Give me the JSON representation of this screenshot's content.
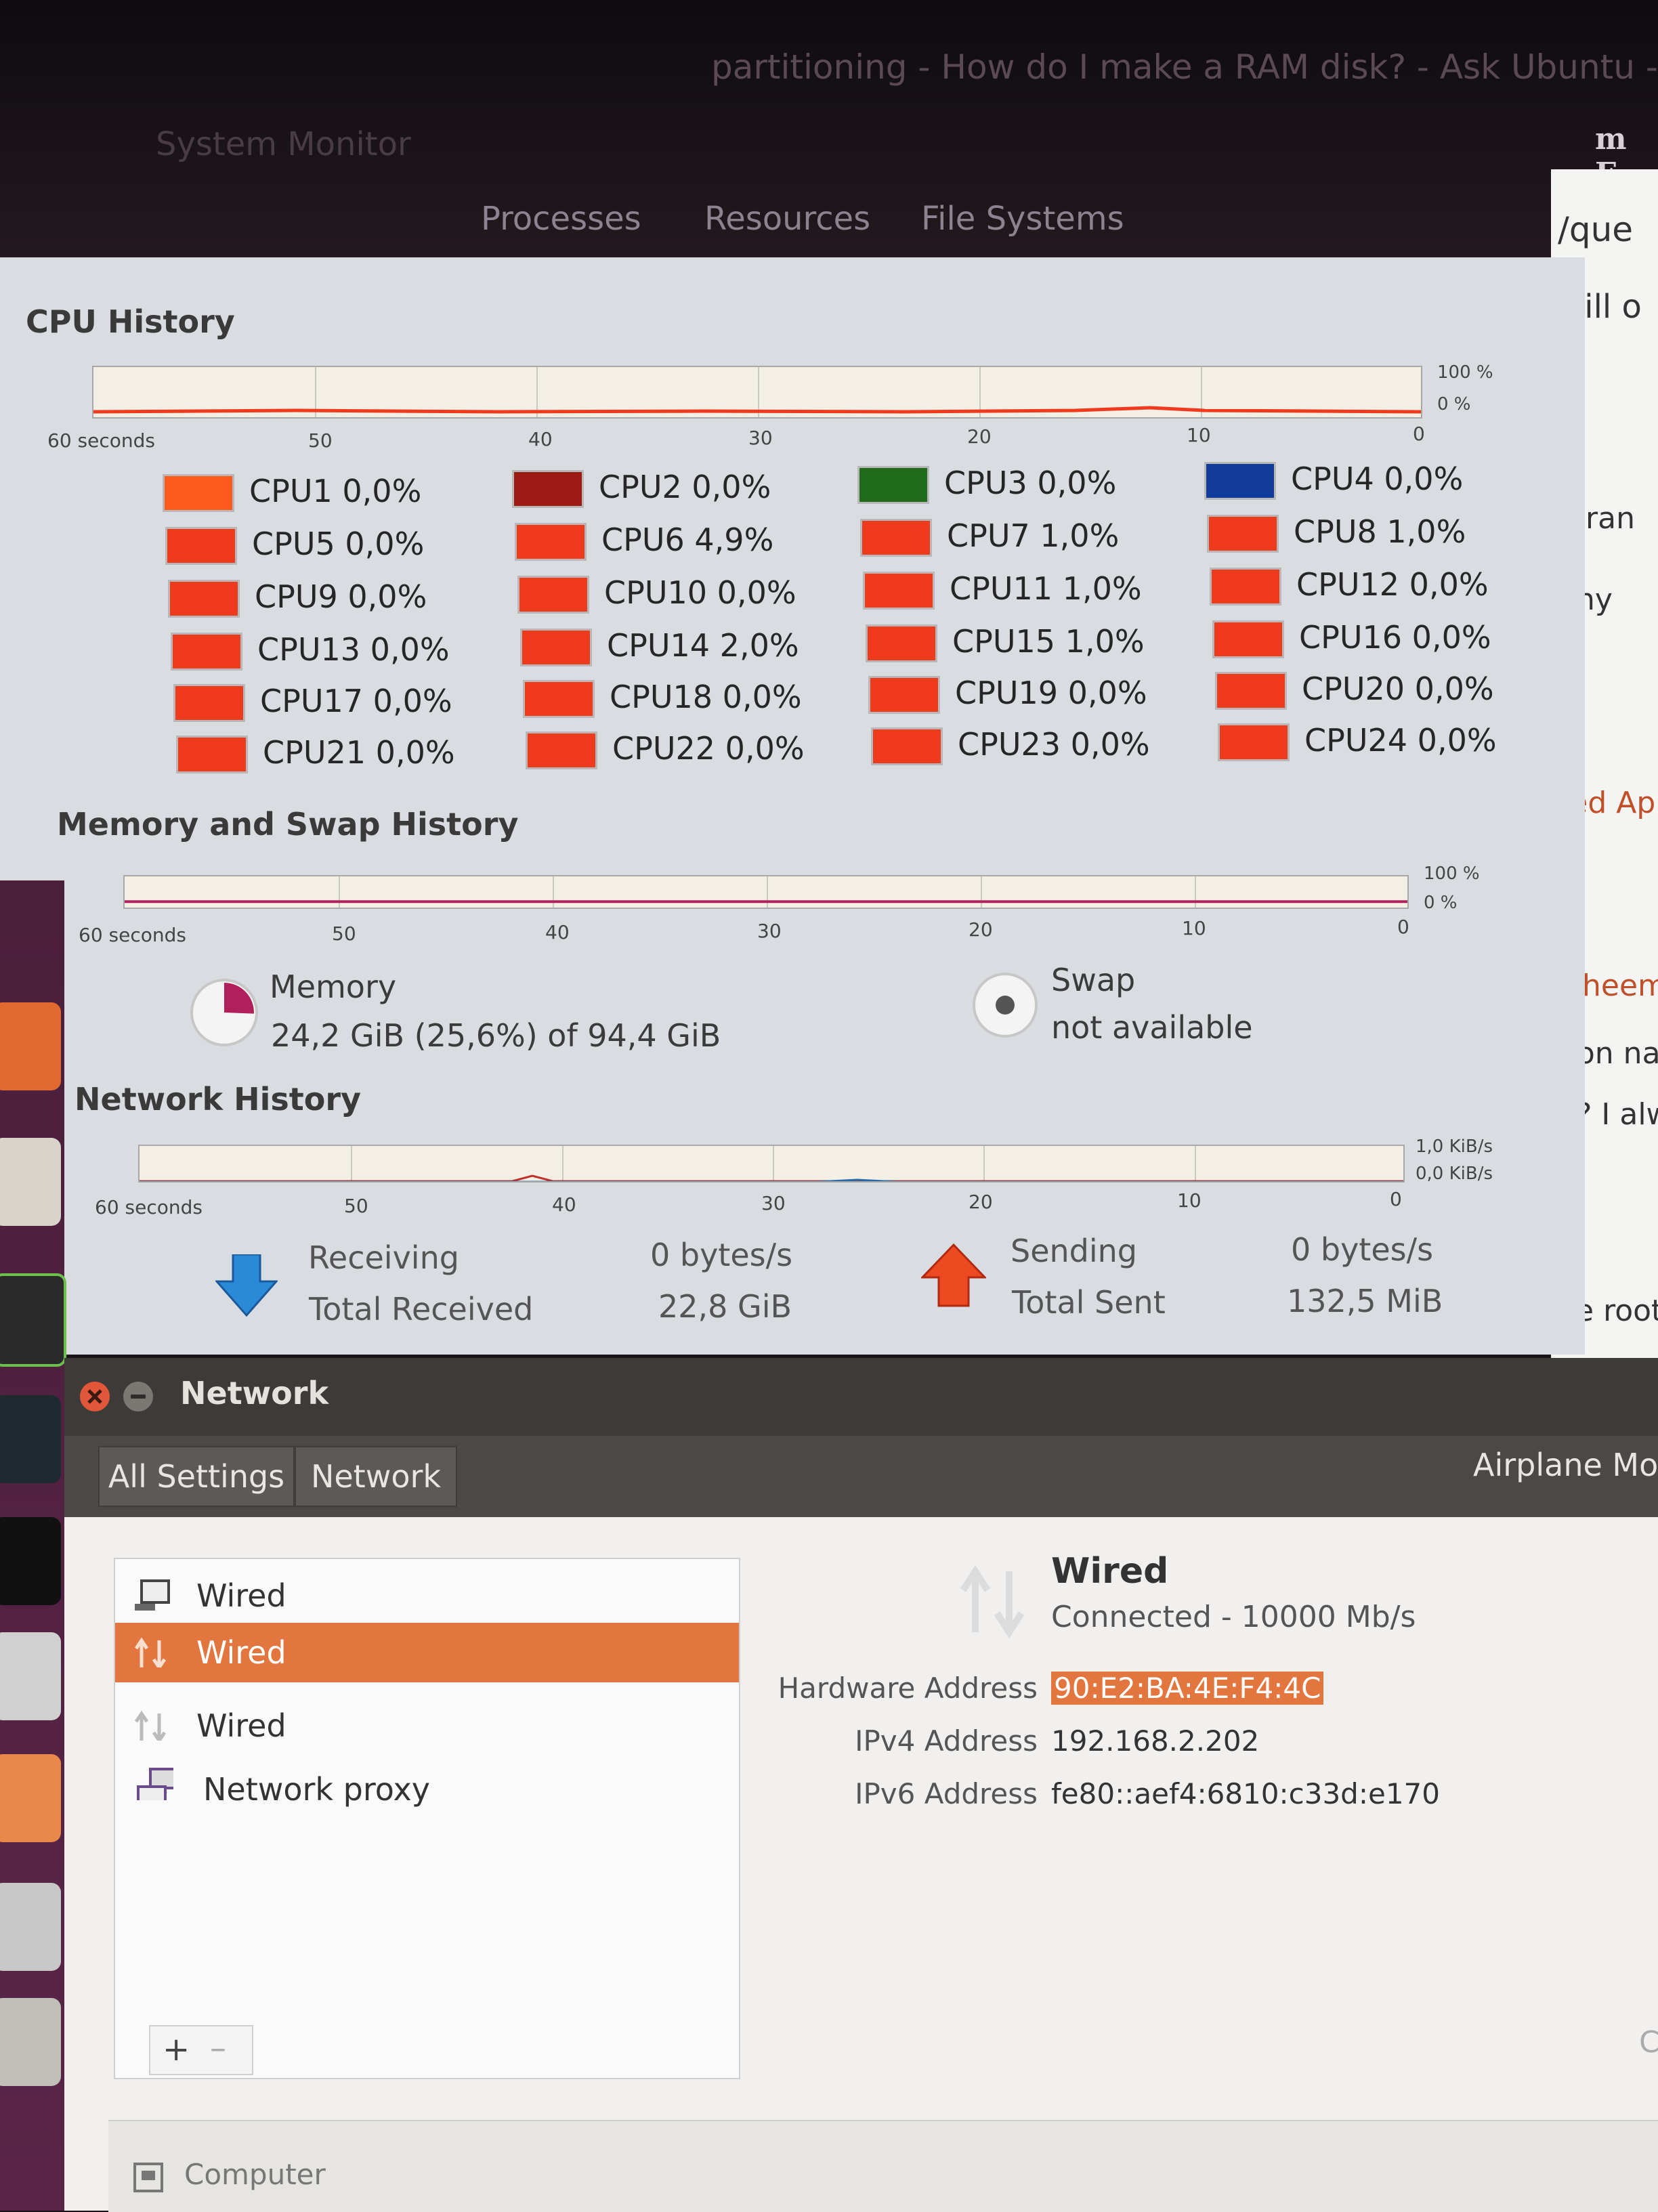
{
  "background": {
    "browser_tab_title": "partitioning - How do I make a RAM disk? - Ask Ubuntu - M",
    "window_title": "System Monitor",
    "browser_snippets": [
      "/que",
      "will o",
      "e ran",
      "any",
      "ted Apr",
      "– heema",
      "non nam",
      "e? I alwa",
      "ve root-"
    ]
  },
  "monitor": {
    "tabs": [
      "Processes",
      "Resources",
      "File Systems"
    ],
    "cpu": {
      "title": "CPU History",
      "axis": [
        "60 seconds",
        "50",
        "40",
        "30",
        "20",
        "10",
        "0"
      ],
      "scale": [
        "100 %",
        "0 %"
      ],
      "cores": [
        {
          "label": "CPU1 0,0%",
          "color": "#ff5a1e"
        },
        {
          "label": "CPU2 0,0%",
          "color": "#9c1b14"
        },
        {
          "label": "CPU3 0,0%",
          "color": "#1f6b1a"
        },
        {
          "label": "CPU4 0,0%",
          "color": "#123c9c"
        },
        {
          "label": "CPU5 0,0%",
          "color": "#ef3a1e"
        },
        {
          "label": "CPU6 4,9%",
          "color": "#ef3a1e"
        },
        {
          "label": "CPU7 1,0%",
          "color": "#ef3a1e"
        },
        {
          "label": "CPU8 1,0%",
          "color": "#ef3a1e"
        },
        {
          "label": "CPU9 0,0%",
          "color": "#ef3a1e"
        },
        {
          "label": "CPU10 0,0%",
          "color": "#ef3a1e"
        },
        {
          "label": "CPU11 1,0%",
          "color": "#ef3a1e"
        },
        {
          "label": "CPU12 0,0%",
          "color": "#ef3a1e"
        },
        {
          "label": "CPU13 0,0%",
          "color": "#ef3a1e"
        },
        {
          "label": "CPU14 2,0%",
          "color": "#ef3a1e"
        },
        {
          "label": "CPU15 1,0%",
          "color": "#ef3a1e"
        },
        {
          "label": "CPU16 0,0%",
          "color": "#ef3a1e"
        },
        {
          "label": "CPU17 0,0%",
          "color": "#ef3a1e"
        },
        {
          "label": "CPU18 0,0%",
          "color": "#ef3a1e"
        },
        {
          "label": "CPU19 0,0%",
          "color": "#ef3a1e"
        },
        {
          "label": "CPU20 0,0%",
          "color": "#ef3a1e"
        },
        {
          "label": "CPU21 0,0%",
          "color": "#ef3a1e"
        },
        {
          "label": "CPU22 0,0%",
          "color": "#ef3a1e"
        },
        {
          "label": "CPU23 0,0%",
          "color": "#ef3a1e"
        },
        {
          "label": "CPU24 0,0%",
          "color": "#ef3a1e"
        }
      ]
    },
    "memory": {
      "title": "Memory and Swap History",
      "axis": [
        "60 seconds",
        "50",
        "40",
        "30",
        "20",
        "10",
        "0"
      ],
      "scale": [
        "100 %",
        "0 %"
      ],
      "memory_label": "Memory",
      "memory_value": "24,2 GiB (25,6%) of 94,4 GiB",
      "memory_fraction": 0.256,
      "swap_label": "Swap",
      "swap_value": "not available"
    },
    "network": {
      "title": "Network History",
      "axis": [
        "60 seconds",
        "50",
        "40",
        "30",
        "20",
        "10",
        "0"
      ],
      "scale": [
        "1,0 KiB/s",
        "0,0 KiB/s"
      ],
      "receiving_label": "Receiving",
      "receiving_value": "0 bytes/s",
      "total_received_label": "Total Received",
      "total_received_value": "22,8 GiB",
      "sending_label": "Sending",
      "sending_value": "0 bytes/s",
      "total_sent_label": "Total Sent",
      "total_sent_value": "132,5 MiB"
    }
  },
  "network_window": {
    "title": "Network",
    "nav": [
      "All Settings",
      "Network"
    ],
    "airplane_mode": "Airplane Mod",
    "connections": [
      {
        "label": "Wired",
        "icon": "wired-computer-icon"
      },
      {
        "label": "Wired",
        "icon": "wired-arrows-icon",
        "selected": true
      },
      {
        "label": "Wired",
        "icon": "wired-arrows-icon"
      },
      {
        "label": "Network proxy",
        "icon": "network-proxy-icon"
      }
    ],
    "add_label": "+",
    "remove_label": "–",
    "detail": {
      "title": "Wired",
      "status": "Connected - 10000 Mb/s",
      "hardware_label": "Hardware Address",
      "hardware_value": "90:E2:BA:4E:F4:4C",
      "ipv4_label": "IPv4 Address",
      "ipv4_value": "192.168.2.202",
      "ipv6_label": "IPv6 Address",
      "ipv6_value": "fe80::aef4:6810:c33d:e170"
    },
    "footer_item": "Computer",
    "right_edge_glyph": "C"
  }
}
